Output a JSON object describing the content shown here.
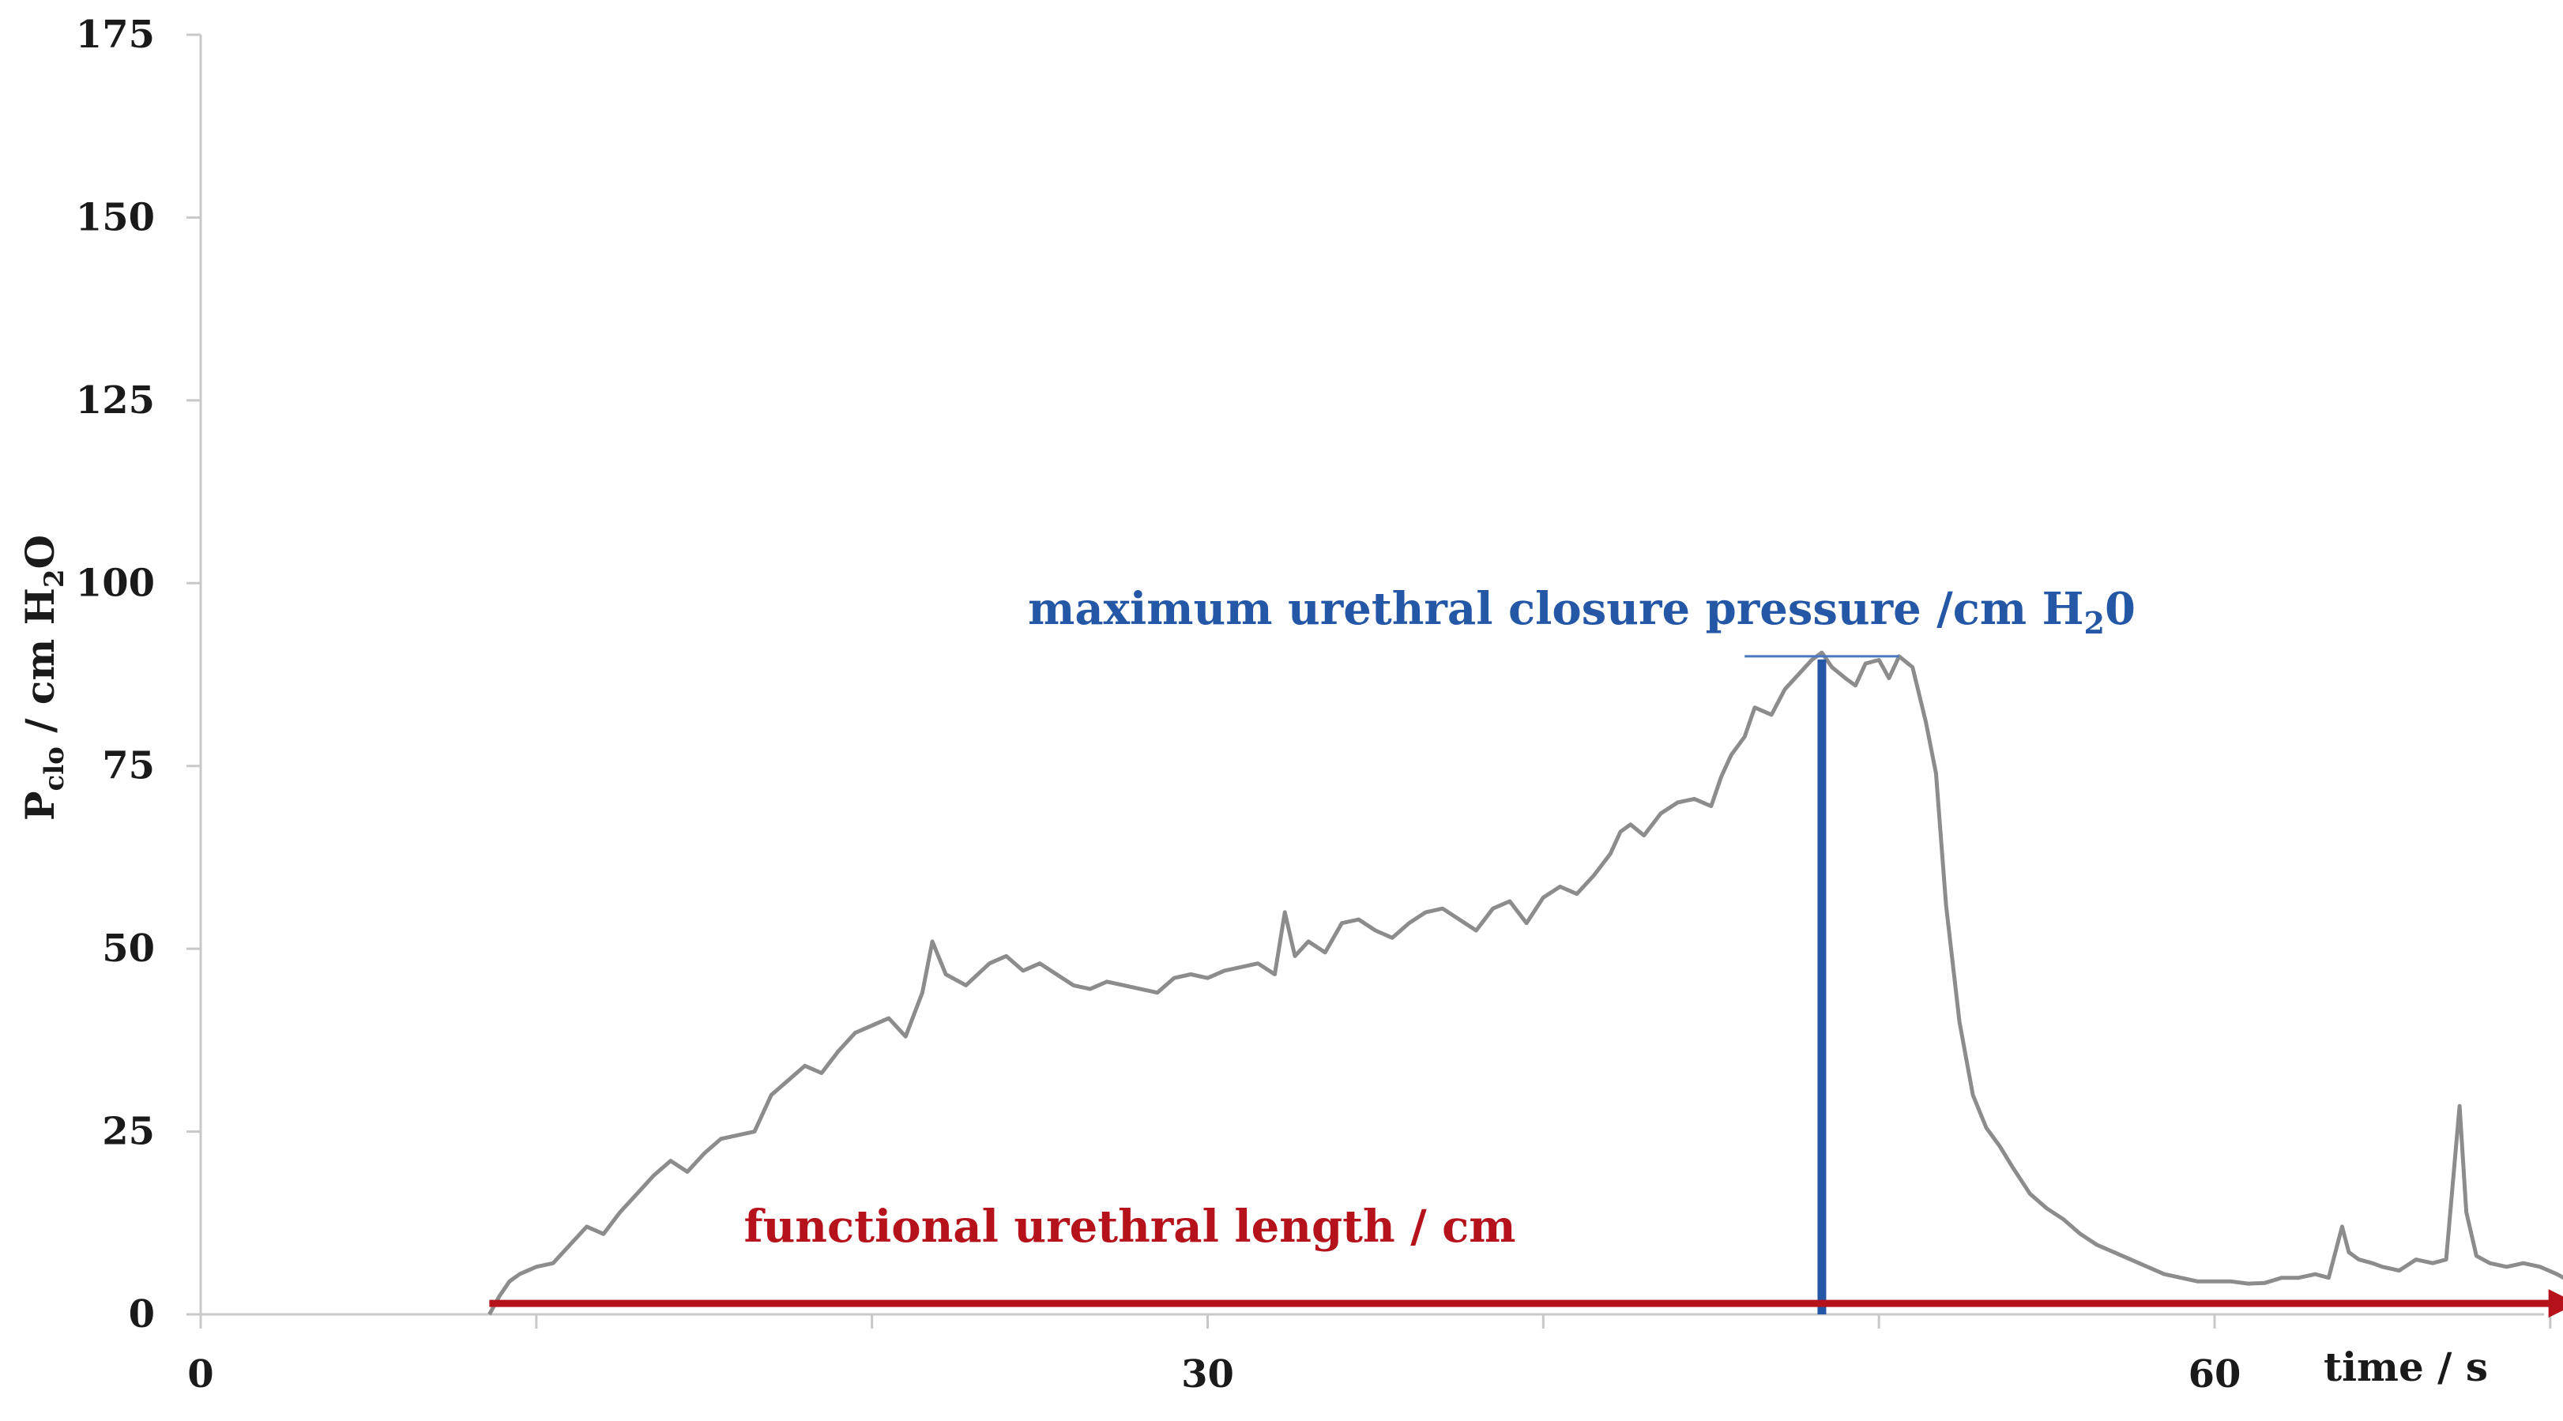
{
  "chart_data": {
    "type": "line",
    "xlim": [
      0,
      70
    ],
    "ylim": [
      0,
      175
    ],
    "x_ticks": [
      0,
      30,
      60
    ],
    "y_ticks": [
      0,
      25,
      50,
      75,
      100,
      125,
      150,
      175
    ],
    "x_minor_ticks": [
      10,
      20,
      40,
      50
    ],
    "xlabel": "time / s",
    "ylabel": {
      "main": "P",
      "sub": "clo",
      "rest": " / cm H",
      "sub2": "2",
      "end": "O"
    },
    "grid": false,
    "series": [
      {
        "color": "#8c8c8c",
        "points": [
          [
            8.6,
            0
          ],
          [
            8.9,
            2.5
          ],
          [
            9.2,
            4.5
          ],
          [
            9.5,
            5.5
          ],
          [
            10.0,
            6.5
          ],
          [
            10.5,
            7.0
          ],
          [
            11.0,
            9.5
          ],
          [
            11.5,
            12.0
          ],
          [
            12.0,
            11.0
          ],
          [
            12.5,
            14.0
          ],
          [
            13.0,
            16.5
          ],
          [
            13.5,
            19.0
          ],
          [
            14.0,
            21.0
          ],
          [
            14.5,
            19.5
          ],
          [
            15.0,
            22.0
          ],
          [
            15.5,
            24.0
          ],
          [
            16.0,
            24.5
          ],
          [
            16.5,
            25.0
          ],
          [
            17.0,
            30.0
          ],
          [
            17.5,
            32.0
          ],
          [
            18.0,
            34.0
          ],
          [
            18.5,
            33.0
          ],
          [
            19.0,
            36.0
          ],
          [
            19.5,
            38.5
          ],
          [
            20.0,
            39.5
          ],
          [
            20.5,
            40.5
          ],
          [
            21.0,
            38.0
          ],
          [
            21.5,
            44.0
          ],
          [
            21.8,
            51.0
          ],
          [
            22.2,
            46.5
          ],
          [
            22.8,
            45.0
          ],
          [
            23.5,
            48.0
          ],
          [
            24.0,
            49.0
          ],
          [
            24.5,
            47.0
          ],
          [
            25.0,
            48.0
          ],
          [
            25.5,
            46.5
          ],
          [
            26.0,
            45.0
          ],
          [
            26.5,
            44.5
          ],
          [
            27.0,
            45.5
          ],
          [
            27.5,
            45.0
          ],
          [
            28.0,
            44.5
          ],
          [
            28.5,
            44.0
          ],
          [
            29.0,
            46.0
          ],
          [
            29.5,
            46.5
          ],
          [
            30.0,
            46.0
          ],
          [
            30.5,
            47.0
          ],
          [
            31.0,
            47.5
          ],
          [
            31.5,
            48.0
          ],
          [
            32.0,
            46.5
          ],
          [
            32.3,
            55.0
          ],
          [
            32.6,
            49.0
          ],
          [
            33.0,
            51.0
          ],
          [
            33.5,
            49.5
          ],
          [
            34.0,
            53.5
          ],
          [
            34.5,
            54.0
          ],
          [
            35.0,
            52.5
          ],
          [
            35.5,
            51.5
          ],
          [
            36.0,
            53.5
          ],
          [
            36.5,
            55.0
          ],
          [
            37.0,
            55.5
          ],
          [
            37.5,
            54.0
          ],
          [
            38.0,
            52.5
          ],
          [
            38.5,
            55.5
          ],
          [
            39.0,
            56.5
          ],
          [
            39.5,
            53.5
          ],
          [
            40.0,
            57.0
          ],
          [
            40.5,
            58.5
          ],
          [
            41.0,
            57.5
          ],
          [
            41.5,
            60.0
          ],
          [
            42.0,
            63.0
          ],
          [
            42.3,
            66.0
          ],
          [
            42.6,
            67.0
          ],
          [
            43.0,
            65.5
          ],
          [
            43.5,
            68.5
          ],
          [
            44.0,
            70.0
          ],
          [
            44.5,
            70.5
          ],
          [
            45.0,
            69.5
          ],
          [
            45.3,
            73.5
          ],
          [
            45.6,
            76.5
          ],
          [
            46.0,
            79.0
          ],
          [
            46.3,
            83.0
          ],
          [
            46.8,
            82.0
          ],
          [
            47.2,
            85.5
          ],
          [
            47.6,
            87.5
          ],
          [
            48.0,
            89.5
          ],
          [
            48.3,
            90.5
          ],
          [
            48.6,
            88.5
          ],
          [
            49.0,
            87.0
          ],
          [
            49.3,
            86.0
          ],
          [
            49.6,
            89.0
          ],
          [
            50.0,
            89.5
          ],
          [
            50.3,
            87.0
          ],
          [
            50.6,
            90.0
          ],
          [
            51.0,
            88.5
          ],
          [
            51.4,
            81.0
          ],
          [
            51.7,
            74.0
          ],
          [
            52.0,
            56.0
          ],
          [
            52.4,
            40.0
          ],
          [
            52.8,
            30.0
          ],
          [
            53.2,
            25.5
          ],
          [
            53.6,
            23.0
          ],
          [
            54.0,
            20.0
          ],
          [
            54.5,
            16.5
          ],
          [
            55.0,
            14.5
          ],
          [
            55.5,
            13.0
          ],
          [
            56.0,
            11.0
          ],
          [
            56.5,
            9.5
          ],
          [
            57.0,
            8.5
          ],
          [
            57.5,
            7.5
          ],
          [
            58.0,
            6.5
          ],
          [
            58.5,
            5.5
          ],
          [
            59.0,
            5.0
          ],
          [
            59.5,
            4.5
          ],
          [
            60.0,
            4.5
          ],
          [
            60.5,
            4.5
          ],
          [
            61.0,
            4.2
          ],
          [
            61.5,
            4.3
          ],
          [
            62.0,
            5.0
          ],
          [
            62.5,
            5.0
          ],
          [
            63.0,
            5.5
          ],
          [
            63.4,
            5.0
          ],
          [
            63.6,
            8.5
          ],
          [
            63.8,
            12.0
          ],
          [
            64.0,
            8.5
          ],
          [
            64.3,
            7.5
          ],
          [
            64.7,
            7.0
          ],
          [
            65.0,
            6.5
          ],
          [
            65.5,
            6.0
          ],
          [
            66.0,
            7.5
          ],
          [
            66.5,
            7.0
          ],
          [
            66.9,
            7.5
          ],
          [
            67.1,
            18.0
          ],
          [
            67.3,
            28.5
          ],
          [
            67.5,
            14.0
          ],
          [
            67.8,
            8.0
          ],
          [
            68.2,
            7.0
          ],
          [
            68.7,
            6.5
          ],
          [
            69.2,
            7.0
          ],
          [
            69.7,
            6.5
          ],
          [
            70.2,
            5.5
          ],
          [
            70.6,
            4.5
          ],
          [
            70.9,
            3.0
          ],
          [
            71.2,
            1.5
          ],
          [
            71.4,
            0.0
          ]
        ]
      }
    ],
    "annotations": {
      "max_pressure": {
        "label_main": "maximum urethral closure pressure /cm H",
        "label_sub": "2",
        "label_end": "0",
        "x": 48.3,
        "y_bottom": 0,
        "y_top": 90,
        "bar_x_start": 46.0,
        "bar_x_end": 50.6,
        "color": "#2457a6"
      },
      "functional_length": {
        "label": "functional urethral length / cm",
        "x_start": 8.6,
        "x_end": 70.9,
        "y": 1.5,
        "color": "#b5121b"
      }
    },
    "axis_color": "#c8c8c8"
  }
}
